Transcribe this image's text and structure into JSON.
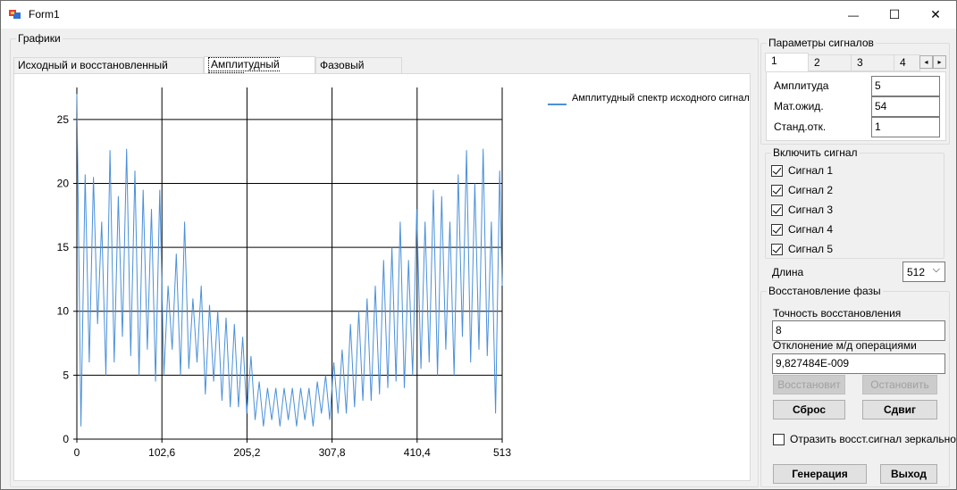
{
  "window": {
    "title": "Form1",
    "minimize": "—",
    "maximize": "☐",
    "close": "✕"
  },
  "graphs": {
    "legend": "Графики",
    "tabs": [
      "Исходный и восстановленный сигнал",
      "Амплитудный спектр",
      "Фазовый спектр"
    ]
  },
  "chart_data": {
    "type": "line",
    "title": "",
    "xlabel": "",
    "ylabel": "",
    "xlim": [
      0,
      513
    ],
    "ylim": [
      0,
      27.5
    ],
    "xticks": [
      "0",
      "102,6",
      "205,2",
      "307,8",
      "410,4",
      "513"
    ],
    "yticks": [
      "0",
      "5",
      "10",
      "15",
      "20",
      "25"
    ],
    "grid": true,
    "color": "#4a90d9",
    "series": [
      {
        "name": "Амплитудный спектр исходного сигнала",
        "x": [
          0,
          5,
          10,
          15,
          20,
          25,
          30,
          35,
          40,
          45,
          50,
          55,
          60,
          65,
          70,
          75,
          80,
          85,
          90,
          95,
          100,
          105,
          110,
          115,
          120,
          125,
          130,
          135,
          140,
          145,
          150,
          155,
          160,
          165,
          170,
          175,
          180,
          185,
          190,
          195,
          200,
          205,
          210,
          215,
          220,
          225,
          230,
          235,
          240,
          245,
          250,
          255,
          260,
          265,
          270,
          275,
          280,
          285,
          290,
          295,
          300,
          305,
          310,
          315,
          320,
          325,
          330,
          335,
          340,
          345,
          350,
          355,
          360,
          365,
          370,
          375,
          380,
          385,
          390,
          395,
          400,
          405,
          410,
          415,
          420,
          425,
          430,
          435,
          440,
          445,
          450,
          455,
          460,
          465,
          470,
          475,
          480,
          485,
          490,
          495,
          500,
          505,
          510,
          513
        ],
        "values": [
          27,
          1,
          20.7,
          6,
          20.5,
          9,
          17,
          5,
          22.6,
          6,
          19,
          8,
          22.7,
          6.5,
          21,
          5,
          19.5,
          7,
          18,
          4.5,
          19.5,
          5,
          12,
          7,
          14.5,
          5,
          17,
          5.5,
          11,
          6,
          12,
          3.5,
          10.5,
          4.5,
          10,
          3,
          9.5,
          2.5,
          9,
          2.5,
          8,
          2,
          6.5,
          1.5,
          4.5,
          1,
          4,
          1.5,
          4,
          1,
          4,
          1.5,
          4,
          1,
          4,
          1.5,
          4,
          1,
          4.5,
          2,
          5,
          1.5,
          6,
          2,
          7,
          2,
          9,
          2.5,
          10,
          3,
          11,
          3,
          12,
          3.5,
          14,
          4,
          15,
          4.5,
          17,
          4,
          14,
          5,
          18,
          5.5,
          17,
          6,
          19.5,
          5,
          19,
          7,
          17,
          5,
          20.7,
          8,
          22.6,
          6,
          20,
          7,
          22.7,
          6.5,
          17,
          2,
          21,
          12
        ]
      }
    ]
  },
  "params": {
    "legend": "Параметры сигналов",
    "tabs": [
      "1",
      "2",
      "3",
      "4"
    ],
    "scroll_left": "◂",
    "scroll_right": "▸",
    "amplitude_label": "Амплитуда",
    "amplitude_value": "5",
    "mean_label": "Мат.ожид.",
    "mean_value": "54",
    "std_label": "Станд.отк.",
    "std_value": "1"
  },
  "enable": {
    "legend": "Включить сигнал",
    "signals": [
      "Сигнал 1",
      "Сигнал 2",
      "Сигнал 3",
      "Сигнал 4",
      "Сигнал 5"
    ]
  },
  "length": {
    "label": "Длина",
    "value": "512",
    "arrow": "⌵"
  },
  "phase": {
    "legend": "Восстановление фазы",
    "accuracy_label": "Точность восстановления",
    "accuracy_value": "8",
    "deviation_label": "Отклонение м/д операциями",
    "deviation_value": "9,827484E-009",
    "restore_btn": "Восстановит",
    "stop_btn": "Остановить",
    "reset_btn": "Сброс",
    "shift_btn": "Сдвиг"
  },
  "mirror_label": "Отразить восст.сигнал зеркально",
  "generate_btn": "Генерация",
  "exit_btn": "Выход"
}
